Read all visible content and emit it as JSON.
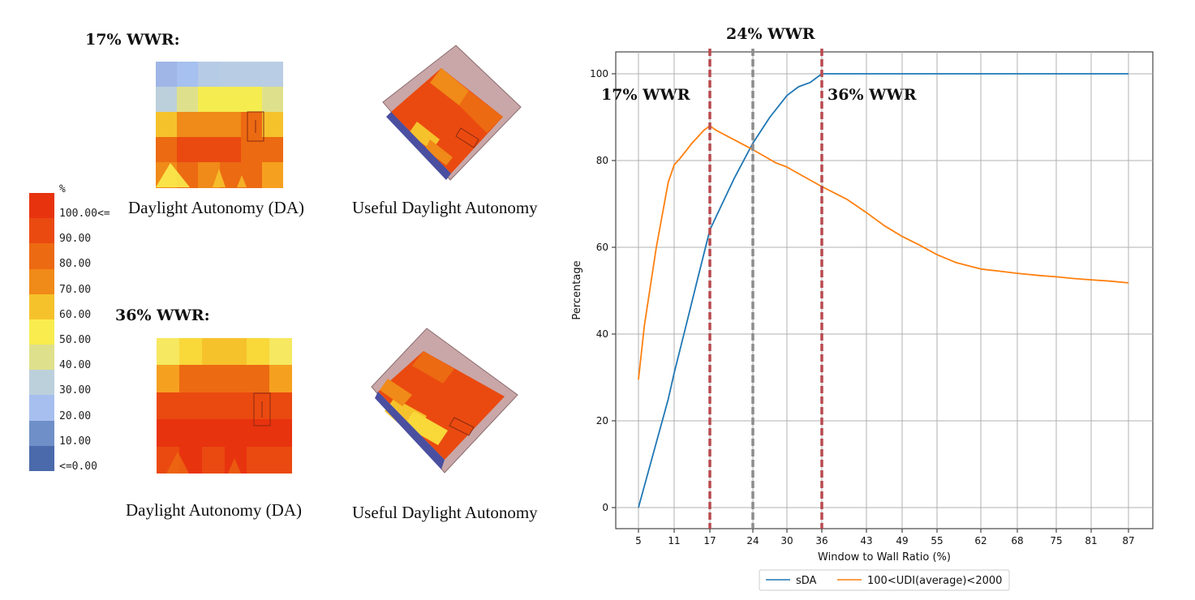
{
  "left_panel": {
    "title_17": "17% WWR:",
    "title_36": "36% WWR:",
    "caption_da": "Daylight Autonomy (DA)",
    "caption_uda": "Useful Daylight Autonomy",
    "legend": {
      "unit": "%",
      "labels": [
        "100.00<=",
        "90.00",
        "80.00",
        "70.00",
        "60.00",
        "50.00",
        "40.00",
        "30.00",
        "20.00",
        "10.00",
        "<=0.00"
      ],
      "colors": [
        "#e8330f",
        "#ea4a10",
        "#ec6a12",
        "#f08a18",
        "#f6c22c",
        "#f9ec4e",
        "#dfe08c",
        "#bcd0dc",
        "#a7bfef",
        "#6f8fc8",
        "#4a6aac"
      ]
    },
    "heatmap_17_colors": [
      [
        "#9fb6e6",
        "#a6c0ef",
        "#b6cbe6",
        "#b8cde4",
        "#b8cde4",
        "#b9cde4"
      ],
      [
        "#bcd0dc",
        "#dfe08c",
        "#f5ec50",
        "#f5ec50",
        "#f5ec50",
        "#dfe08c"
      ],
      [
        "#f6c22c",
        "#f08a18",
        "#f08a18",
        "#f08a18",
        "#ec6a12",
        "#f6c22c"
      ],
      [
        "#ec6a12",
        "#ea4a10",
        "#ea4a10",
        "#ea4a10",
        "#ec6a12",
        "#ec6a12"
      ],
      [
        "#f08a18",
        "#ec6a12",
        "#f08a18",
        "#ec6a12",
        "#ec6a12",
        "#f6a020"
      ]
    ],
    "heatmap_36_colors": [
      [
        "#f6e860",
        "#f9d83a",
        "#f6c22c",
        "#f6c22c",
        "#f9d83a",
        "#f6e860"
      ],
      [
        "#f6a020",
        "#ec6a12",
        "#ec6a12",
        "#ec6a12",
        "#ec6a12",
        "#f6a020"
      ],
      [
        "#ea4a10",
        "#ea4a10",
        "#ea4a10",
        "#ea4a10",
        "#ea4a10",
        "#ea4a10"
      ],
      [
        "#e8330f",
        "#e8330f",
        "#e8330f",
        "#e8330f",
        "#e8330f",
        "#e8330f"
      ],
      [
        "#ea4a10",
        "#e8330f",
        "#ea4a10",
        "#e8330f",
        "#ea4a10",
        "#ea4a10"
      ]
    ]
  },
  "chart_data": {
    "type": "line",
    "title": "24% WWR",
    "xlabel": "Window to Wall Ratio (%)",
    "ylabel": "Percentage",
    "xlim": [
      0,
      90
    ],
    "ylim": [
      -5,
      105
    ],
    "xticks": [
      5,
      11,
      17,
      24,
      30,
      36,
      43,
      49,
      55,
      62,
      68,
      75,
      81,
      87
    ],
    "xtick_labels": [
      "5",
      "11",
      "17",
      "24",
      "30",
      "36",
      "43",
      "49",
      "55",
      "62",
      "68",
      "75",
      "81",
      "87"
    ],
    "yticks": [
      0,
      20,
      40,
      60,
      80,
      100
    ],
    "ytick_labels": [
      "0",
      "20",
      "40",
      "60",
      "80",
      "100"
    ],
    "grid": true,
    "legend_position": "bottom",
    "vlines": [
      {
        "x": 17,
        "label": "17% WWR",
        "color": "#b94a4f"
      },
      {
        "x": 24,
        "label": "",
        "color": "#8c8c8c"
      },
      {
        "x": 36,
        "label": "36% WWR",
        "color": "#b94a4f"
      }
    ],
    "series": [
      {
        "name": "sDA",
        "color": "#1f77b4",
        "x": [
          5,
          6,
          8,
          10,
          11,
          13,
          15,
          17,
          19,
          21,
          24,
          27,
          30,
          32,
          34,
          36,
          40,
          50,
          60,
          70,
          80,
          87
        ],
        "y": [
          0,
          5,
          15,
          25,
          31,
          42,
          53,
          64,
          70,
          76,
          84,
          90,
          95,
          97,
          98,
          100,
          100,
          100,
          100,
          100,
          100,
          100
        ]
      },
      {
        "name": "100<UDI(average)<2000",
        "color": "#ff7f0e",
        "x": [
          5,
          6,
          8,
          10,
          11,
          12,
          14,
          16,
          17,
          18,
          20,
          22,
          24,
          26,
          28,
          30,
          32,
          34,
          36,
          38,
          40,
          43,
          46,
          49,
          52,
          55,
          58,
          62,
          65,
          68,
          72,
          75,
          78,
          81,
          84,
          87
        ],
        "y": [
          29.5,
          42,
          60,
          75,
          79,
          80.5,
          84,
          87,
          88,
          87,
          85.5,
          84,
          82.5,
          81,
          79.5,
          78.5,
          77,
          75.5,
          74,
          72.5,
          71,
          68,
          65,
          62.5,
          60.5,
          58.3,
          56.5,
          55,
          54.5,
          54,
          53.5,
          53.2,
          52.8,
          52.5,
          52.2,
          51.8
        ]
      }
    ]
  }
}
